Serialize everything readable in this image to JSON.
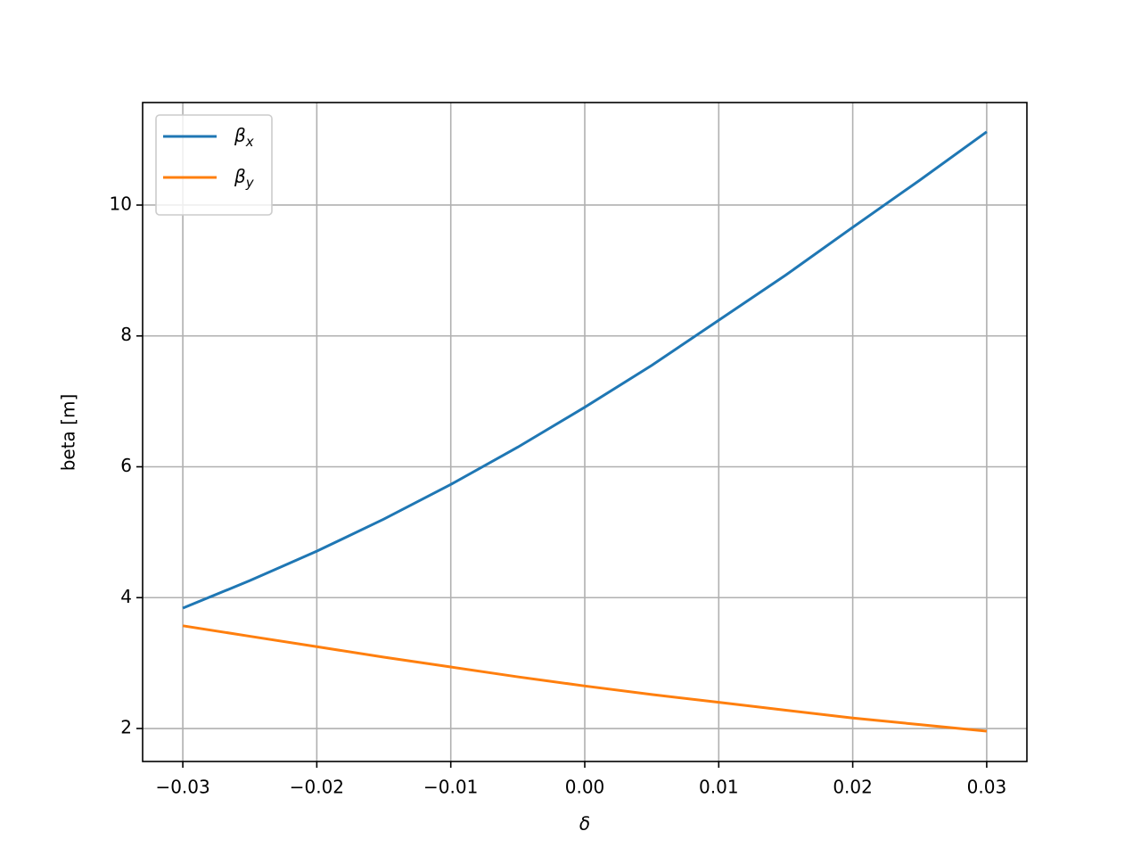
{
  "chart_data": {
    "type": "line",
    "x_label": "δ",
    "y_label": "beta [m]",
    "x": [
      -0.03,
      -0.025,
      -0.02,
      -0.015,
      -0.01,
      -0.005,
      0.0,
      0.005,
      0.01,
      0.015,
      0.02,
      0.025,
      0.03
    ],
    "series": [
      {
        "name": "βx",
        "color": "#1f77b4",
        "values": [
          3.84,
          4.26,
          4.71,
          5.2,
          5.73,
          6.3,
          6.91,
          7.55,
          8.24,
          8.93,
          9.66,
          10.38,
          11.12
        ]
      },
      {
        "name": "βy",
        "color": "#ff7f0e",
        "values": [
          3.57,
          3.41,
          3.25,
          3.09,
          2.94,
          2.79,
          2.65,
          2.52,
          2.4,
          2.28,
          2.16,
          2.06,
          1.96
        ]
      }
    ],
    "xlim": [
      -0.033,
      0.033
    ],
    "ylim": [
      1.496,
      11.567
    ],
    "xticks": [
      {
        "value": -0.03,
        "label": "−0.03"
      },
      {
        "value": -0.02,
        "label": "−0.02"
      },
      {
        "value": -0.01,
        "label": "−0.01"
      },
      {
        "value": 0,
        "label": "0.00"
      },
      0.01,
      0.02,
      0.03
    ],
    "yticks": [
      2,
      4,
      6,
      8,
      10
    ],
    "grid": true,
    "legend": "upper left"
  }
}
